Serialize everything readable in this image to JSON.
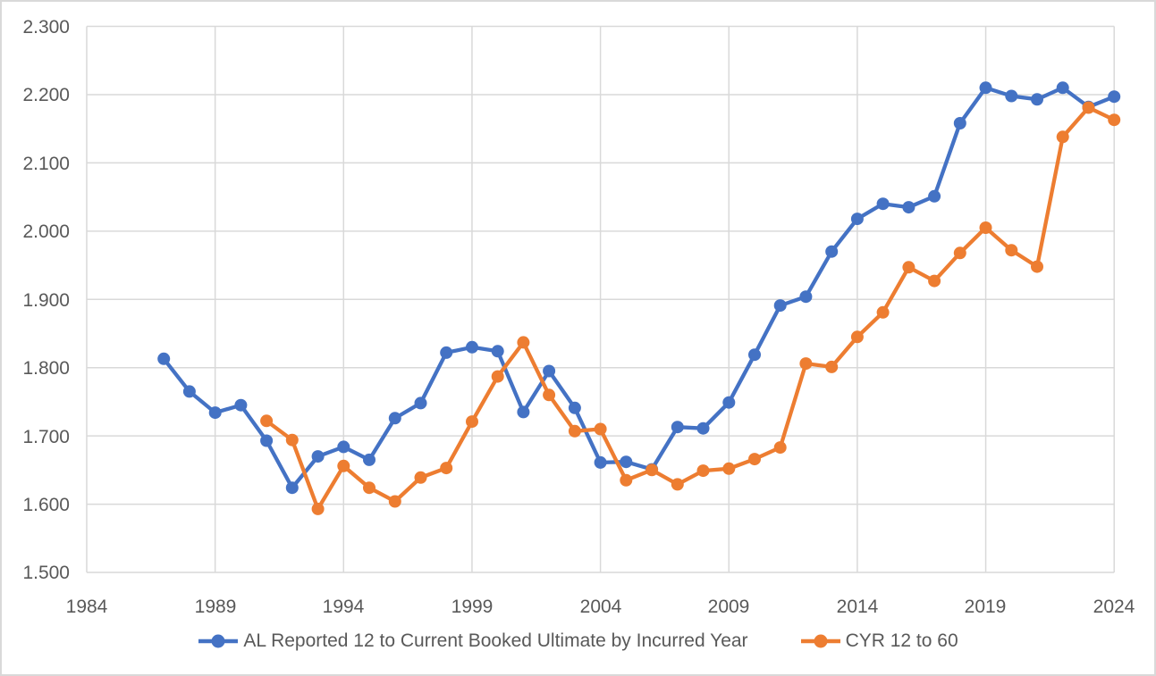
{
  "chart_data": {
    "type": "line",
    "title": "",
    "grid": true,
    "legend_position": "bottom",
    "x_axis": {
      "min": 1984,
      "max": 2024,
      "ticks": [
        1984,
        1989,
        1994,
        1999,
        2004,
        2009,
        2014,
        2019,
        2024
      ],
      "tick_labels": [
        "1984",
        "1989",
        "1994",
        "1999",
        "2004",
        "2009",
        "2014",
        "2019",
        "2024"
      ]
    },
    "y_axis": {
      "min": 1.5,
      "max": 2.3,
      "tick_step": 0.1,
      "ticks": [
        2.3,
        2.2,
        2.1,
        2.0,
        1.9,
        1.8,
        1.7,
        1.6,
        1.5
      ],
      "tick_labels": [
        "2.300",
        "2.200",
        "2.100",
        "2.000",
        "1.900",
        "1.800",
        "1.700",
        "1.600",
        "1.500"
      ]
    },
    "series": [
      {
        "name": "AL Reported 12 to Current Booked Ultimate by Incurred Year",
        "color": "#4472C4",
        "marker": "circle",
        "points": [
          [
            1987,
            1.813
          ],
          [
            1988,
            1.765
          ],
          [
            1989,
            1.734
          ],
          [
            1990,
            1.745
          ],
          [
            1991,
            1.693
          ],
          [
            1992,
            1.624
          ],
          [
            1993,
            1.67
          ],
          [
            1994,
            1.684
          ],
          [
            1995,
            1.665
          ],
          [
            1996,
            1.726
          ],
          [
            1997,
            1.748
          ],
          [
            1998,
            1.822
          ],
          [
            1999,
            1.83
          ],
          [
            2000,
            1.824
          ],
          [
            2001,
            1.735
          ],
          [
            2002,
            1.795
          ],
          [
            2003,
            1.741
          ],
          [
            2004,
            1.661
          ],
          [
            2005,
            1.662
          ],
          [
            2006,
            1.651
          ],
          [
            2007,
            1.713
          ],
          [
            2008,
            1.711
          ],
          [
            2009,
            1.749
          ],
          [
            2010,
            1.819
          ],
          [
            2011,
            1.891
          ],
          [
            2012,
            1.904
          ],
          [
            2013,
            1.97
          ],
          [
            2014,
            2.018
          ],
          [
            2015,
            2.04
          ],
          [
            2016,
            2.035
          ],
          [
            2017,
            2.051
          ],
          [
            2018,
            2.158
          ],
          [
            2019,
            2.21
          ],
          [
            2020,
            2.198
          ],
          [
            2021,
            2.193
          ],
          [
            2022,
            2.21
          ],
          [
            2023,
            2.182
          ],
          [
            2024,
            2.197
          ]
        ]
      },
      {
        "name": "CYR 12 to 60",
        "color": "#ED7D31",
        "marker": "circle",
        "points": [
          [
            1991,
            1.722
          ],
          [
            1992,
            1.694
          ],
          [
            1993,
            1.593
          ],
          [
            1994,
            1.656
          ],
          [
            1995,
            1.624
          ],
          [
            1996,
            1.604
          ],
          [
            1997,
            1.639
          ],
          [
            1998,
            1.653
          ],
          [
            1999,
            1.721
          ],
          [
            2000,
            1.787
          ],
          [
            2001,
            1.837
          ],
          [
            2002,
            1.76
          ],
          [
            2003,
            1.707
          ],
          [
            2004,
            1.71
          ],
          [
            2005,
            1.635
          ],
          [
            2006,
            1.65
          ],
          [
            2007,
            1.629
          ],
          [
            2008,
            1.649
          ],
          [
            2009,
            1.652
          ],
          [
            2010,
            1.666
          ],
          [
            2011,
            1.683
          ],
          [
            2012,
            1.806
          ],
          [
            2013,
            1.801
          ],
          [
            2014,
            1.845
          ],
          [
            2015,
            1.881
          ],
          [
            2016,
            1.947
          ],
          [
            2017,
            1.927
          ],
          [
            2018,
            1.968
          ],
          [
            2019,
            2.005
          ],
          [
            2020,
            1.972
          ],
          [
            2021,
            1.948
          ],
          [
            2022,
            2.138
          ],
          [
            2023,
            2.181
          ],
          [
            2024,
            2.163
          ]
        ]
      }
    ]
  },
  "colors": {
    "gridline": "#D9D9D9",
    "axis_text": "#595959",
    "background": "#FFFFFF",
    "frame_border": "#D9D9D9",
    "series_blue": "#4472C4",
    "series_orange": "#ED7D31"
  }
}
